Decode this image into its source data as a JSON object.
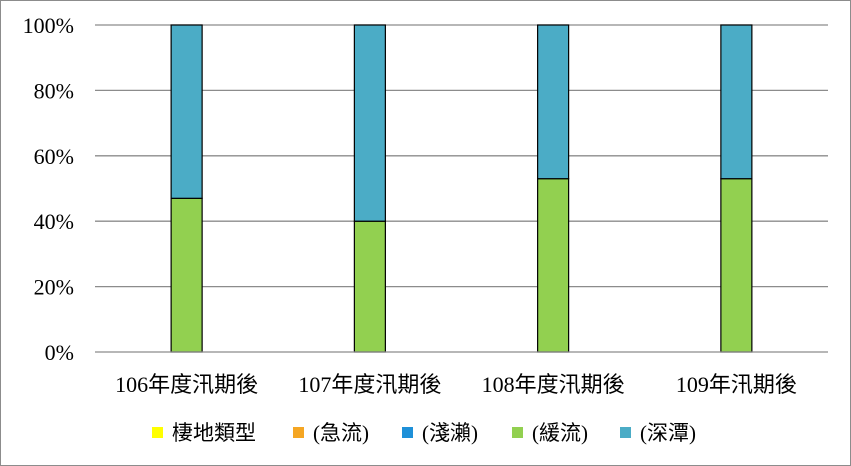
{
  "chart_data": {
    "type": "bar",
    "stacked": true,
    "percent_stacked": true,
    "title": "",
    "xlabel": "",
    "ylabel": "",
    "categories": [
      "106年度汛期後",
      "107年度汛期後",
      "108年度汛期後",
      "109年汛期後"
    ],
    "yticks": [
      "0%",
      "20%",
      "40%",
      "60%",
      "80%",
      "100%"
    ],
    "ylim": [
      0,
      100
    ],
    "grid": true,
    "legend_position": "bottom",
    "series": [
      {
        "name": "棲地類型",
        "values": [
          0,
          0,
          0,
          0
        ],
        "color": "#FFFF00"
      },
      {
        "name": "(急流)",
        "values": [
          0,
          0,
          0,
          0
        ],
        "color": "#F5A623"
      },
      {
        "name": "(淺瀨)",
        "values": [
          0,
          0,
          0,
          0
        ],
        "color": "#1E90D8"
      },
      {
        "name": "(緩流)",
        "values": [
          47,
          40,
          53,
          53
        ],
        "color": "#92D050"
      },
      {
        "name": "(深潭)",
        "values": [
          53,
          60,
          47,
          47
        ],
        "color": "#4BACC6"
      }
    ]
  }
}
